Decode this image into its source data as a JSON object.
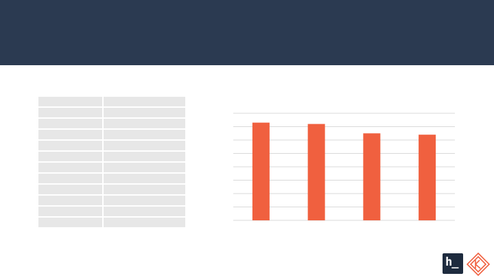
{
  "header": {
    "title": ""
  },
  "table": {
    "rows": 12,
    "cols": 2
  },
  "chart_data": {
    "type": "bar",
    "categories": [
      "",
      "",
      "",
      ""
    ],
    "values": [
      7.3,
      7.2,
      6.5,
      6.4
    ],
    "ylim": [
      0,
      8
    ],
    "grid": true,
    "color": "#f0603f",
    "title": "",
    "xlabel": "",
    "ylabel": ""
  },
  "logos": {
    "left": {
      "name": "h-icon",
      "glyph": "h_"
    },
    "right": {
      "name": "diamond-k-icon",
      "color": "#f0603f"
    }
  }
}
